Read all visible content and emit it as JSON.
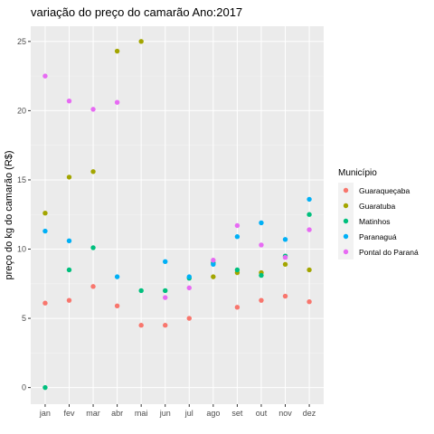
{
  "chart_data": {
    "type": "scatter",
    "title": "variação do preço do camarão Ano:2017",
    "xlabel": "",
    "ylabel": "preço do kg do camarão (R$)",
    "categories": [
      "jan",
      "fev",
      "mar",
      "abr",
      "mai",
      "jun",
      "jul",
      "ago",
      "set",
      "out",
      "nov",
      "dez"
    ],
    "ylim": [
      -1.2,
      26.1
    ],
    "yticks": [
      0,
      5,
      10,
      15,
      20,
      25
    ],
    "ytick_labels": [
      "0",
      "5",
      "10",
      "15",
      "20",
      "25"
    ],
    "grid": true,
    "legend": {
      "title": "Município",
      "position": "right"
    },
    "series": [
      {
        "name": "Guaraqueçaba",
        "color": "#F8766D",
        "values": [
          6.1,
          6.3,
          7.3,
          5.9,
          4.5,
          4.5,
          5.0,
          null,
          5.8,
          6.3,
          6.6,
          6.2
        ]
      },
      {
        "name": "Guaratuba",
        "color": "#A3A500",
        "values": [
          12.6,
          15.2,
          15.6,
          24.3,
          25.0,
          null,
          null,
          8.0,
          8.3,
          8.3,
          8.9,
          8.5
        ]
      },
      {
        "name": "Matinhos",
        "color": "#00BF7D",
        "values": [
          0.0,
          8.5,
          10.1,
          null,
          7.0,
          7.0,
          7.9,
          9.0,
          8.5,
          8.1,
          9.5,
          12.5
        ]
      },
      {
        "name": "Paranaguá",
        "color": "#00B0F6",
        "values": [
          11.3,
          10.6,
          null,
          8.0,
          null,
          9.1,
          8.0,
          8.9,
          10.9,
          11.9,
          10.7,
          13.6
        ]
      },
      {
        "name": "Pontal do Paraná",
        "color": "#E76BF3",
        "values": [
          22.5,
          20.7,
          20.1,
          20.6,
          null,
          6.5,
          7.2,
          9.2,
          11.7,
          10.3,
          9.4,
          11.4
        ]
      }
    ]
  }
}
